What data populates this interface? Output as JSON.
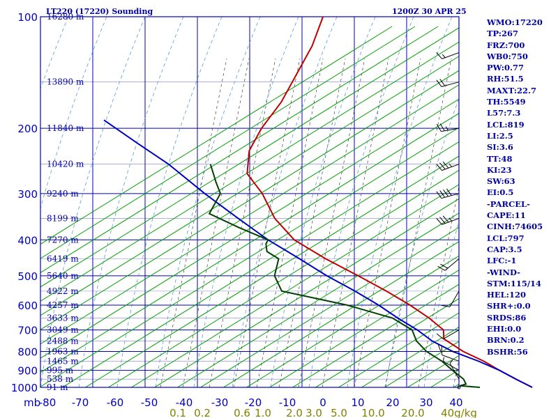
{
  "header": {
    "station": "LT220 (17220) Sounding",
    "time": "1200Z 30 APR 25"
  },
  "indices": [
    "WMO:17220",
    "TP:267",
    "FRZ:700",
    "WB0:750",
    "PW:0.77",
    "RH:51.5",
    "MAXT:22.7",
    "TH:5549",
    "L57:7.3",
    "LCL:819",
    "LI:2.5",
    "SI:3.6",
    "TT:48",
    "KI:23",
    "SW:63",
    "EI:0.5",
    "-PARCEL-",
    "CAPE:11",
    "CINH:74605",
    "LCL:797",
    "CAP:3.5",
    "LFC:-1",
    "-WIND-",
    "STM:115/14",
    "HEL:120",
    "SHR+:0.0",
    "SRDS:86",
    "EHI:0.0",
    "BRN:0.2",
    "BSHR:56"
  ],
  "chart_data": {
    "type": "line",
    "title": "LT220 (17220) Sounding",
    "subtitle": "1200Z 30 APR 25",
    "xlabel": "",
    "ylabel": "mb",
    "xlim": [
      -80,
      0
    ],
    "ylim": [
      1000,
      100
    ],
    "grid": true,
    "pressure_levels": [
      100,
      200,
      300,
      400,
      500,
      600,
      700,
      800,
      900,
      1000
    ],
    "pressure_tick_labels": [
      "100",
      "200",
      "300",
      "400",
      "500",
      "600",
      "700",
      "800",
      "900",
      "1000"
    ],
    "temperature_ticks": [
      -80,
      -70,
      -60,
      -50,
      -40,
      -30,
      -20,
      -10,
      0,
      10,
      20,
      30,
      40
    ],
    "temperature_tick_labels": [
      "-80",
      "-70",
      "-60",
      "-50",
      "-40",
      "-30",
      "-20",
      "-10",
      "0",
      "10",
      "20",
      "30",
      "40"
    ],
    "height_labels": [
      {
        "p": 100,
        "label": "16280 m"
      },
      {
        "p": 150,
        "label": "13890 m"
      },
      {
        "p": 200,
        "label": "11840 m"
      },
      {
        "p": 250,
        "label": "10420 m"
      },
      {
        "p": 300,
        "label": "9240 m"
      },
      {
        "p": 350,
        "label": "8199 m"
      },
      {
        "p": 400,
        "label": "7270 m"
      },
      {
        "p": 450,
        "label": "6419 m"
      },
      {
        "p": 500,
        "label": "5640 m"
      },
      {
        "p": 550,
        "label": "4922 m"
      },
      {
        "p": 600,
        "label": "4257 m"
      },
      {
        "p": 650,
        "label": "3633 m"
      },
      {
        "p": 700,
        "label": "3049 m"
      },
      {
        "p": 750,
        "label": "2488 m"
      },
      {
        "p": 800,
        "label": "1963 m"
      },
      {
        "p": 850,
        "label": "1465 m"
      },
      {
        "p": 900,
        "label": "995 m"
      },
      {
        "p": 950,
        "label": "538 m"
      },
      {
        "p": 1000,
        "label": "91 m"
      }
    ],
    "mixing_ratio_labels": [
      "0.1",
      "0.2",
      "0.6",
      "1.0",
      "2.0",
      "3.0",
      "5.0",
      "10.0",
      "20.0",
      "40g/kg"
    ],
    "series": [
      {
        "name": "",
        "color": "#c00000",
        "points": [
          [
            100,
            -57
          ],
          [
            120,
            -56
          ],
          [
            170,
            -56
          ],
          [
            200,
            -57
          ],
          [
            230,
            -57
          ],
          [
            265,
            -55
          ],
          [
            300,
            -50
          ],
          [
            350,
            -45
          ],
          [
            400,
            -39
          ],
          [
            450,
            -31
          ],
          [
            500,
            -23
          ],
          [
            550,
            -16
          ],
          [
            600,
            -10
          ],
          [
            650,
            -5
          ],
          [
            700,
            -1
          ],
          [
            740,
            0
          ],
          [
            800,
            5
          ],
          [
            850,
            10
          ],
          [
            900,
            14
          ],
          [
            950,
            18
          ],
          [
            1000,
            22
          ]
        ]
      },
      {
        "name": "",
        "color": "#0000c0",
        "points": [
          [
            190,
            -88
          ],
          [
            220,
            -79
          ],
          [
            250,
            -71
          ],
          [
            300,
            -61
          ],
          [
            350,
            -52
          ],
          [
            400,
            -44
          ],
          [
            450,
            -36
          ],
          [
            500,
            -29
          ],
          [
            550,
            -22
          ],
          [
            600,
            -16
          ],
          [
            650,
            -11
          ],
          [
            700,
            -6
          ],
          [
            750,
            -2
          ],
          [
            800,
            3
          ],
          [
            850,
            9
          ],
          [
            900,
            14
          ],
          [
            950,
            18
          ],
          [
            1000,
            22
          ]
        ]
      },
      {
        "name": "",
        "color": "#004000",
        "points": [
          [
            250,
            -63
          ],
          [
            280,
            -60
          ],
          [
            300,
            -58
          ],
          [
            340,
            -58
          ],
          [
            370,
            -51
          ],
          [
            400,
            -44
          ],
          [
            410,
            -44
          ],
          [
            430,
            -43
          ],
          [
            450,
            -40
          ],
          [
            500,
            -39
          ],
          [
            550,
            -36
          ],
          [
            600,
            -22
          ],
          [
            650,
            -12
          ],
          [
            700,
            -7
          ],
          [
            750,
            -5
          ],
          [
            800,
            -2
          ],
          [
            850,
            2
          ],
          [
            900,
            5
          ],
          [
            950,
            8
          ],
          [
            980,
            9
          ],
          [
            990,
            8
          ],
          [
            1000,
            12
          ]
        ]
      }
    ],
    "wind_profile": [
      {
        "p": 125,
        "dir": 250,
        "spd": 15
      },
      {
        "p": 150,
        "dir": 255,
        "spd": 20
      },
      {
        "p": 200,
        "dir": 260,
        "spd": 25
      },
      {
        "p": 250,
        "dir": 250,
        "spd": 35
      },
      {
        "p": 300,
        "dir": 255,
        "spd": 40
      },
      {
        "p": 350,
        "dir": 250,
        "spd": 35
      },
      {
        "p": 450,
        "dir": 230,
        "spd": 20
      },
      {
        "p": 550,
        "dir": 210,
        "spd": 10
      },
      {
        "p": 700,
        "dir": 240,
        "spd": 10
      },
      {
        "p": 800,
        "dir": 270,
        "spd": 10
      },
      {
        "p": 850,
        "dir": 290,
        "spd": 10
      },
      {
        "p": 900,
        "dir": 300,
        "spd": 5
      },
      {
        "p": 950,
        "dir": 330,
        "spd": 5
      },
      {
        "p": 1000,
        "dir": 0,
        "spd": 0
      }
    ]
  }
}
